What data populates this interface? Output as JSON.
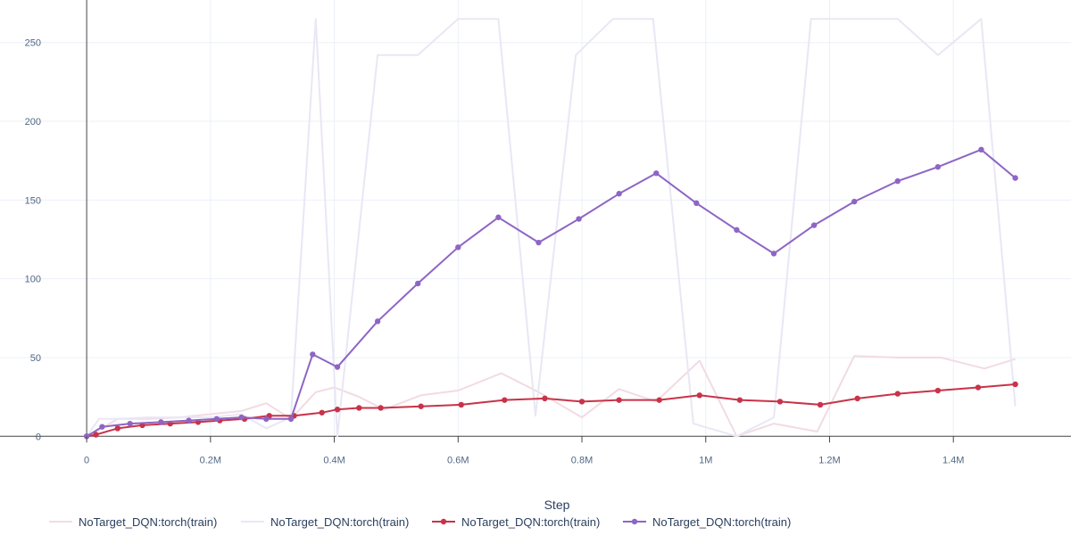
{
  "chart_data": {
    "type": "line",
    "xlabel": "Step",
    "ylabel": "",
    "xlim": [
      -140000,
      1590000
    ],
    "ylim": [
      -14,
      277
    ],
    "x_ticks": [
      {
        "value": 0,
        "label": "0"
      },
      {
        "value": 200000,
        "label": "0.2M"
      },
      {
        "value": 400000,
        "label": "0.4M"
      },
      {
        "value": 600000,
        "label": "0.6M"
      },
      {
        "value": 800000,
        "label": "0.8M"
      },
      {
        "value": 1000000,
        "label": "1M"
      },
      {
        "value": 1200000,
        "label": "1.2M"
      },
      {
        "value": 1400000,
        "label": "1.4M"
      }
    ],
    "y_ticks": [
      {
        "value": 0,
        "label": "0"
      },
      {
        "value": 50,
        "label": "50"
      },
      {
        "value": 100,
        "label": "100"
      },
      {
        "value": 150,
        "label": "150"
      },
      {
        "value": 200,
        "label": "200"
      },
      {
        "value": 250,
        "label": "250"
      }
    ],
    "grid": true,
    "legend_position": "bottom",
    "series": [
      {
        "name": "NoTarget_DQN:torch(train)",
        "color": "#f2dbe3",
        "markers": false,
        "x": [
          0,
          20000,
          50000,
          100000,
          150000,
          200000,
          250000,
          290000,
          330000,
          370000,
          400000,
          440000,
          480000,
          540000,
          600000,
          670000,
          730000,
          800000,
          860000,
          920000,
          990000,
          1050000,
          1110000,
          1180000,
          1240000,
          1310000,
          1380000,
          1450000,
          1500000
        ],
        "y": [
          0,
          4,
          11,
          11,
          12,
          14,
          16,
          21,
          11,
          28,
          31,
          25,
          17,
          26,
          29,
          40,
          28,
          12,
          30,
          22,
          48,
          0,
          8,
          3,
          51,
          50,
          50,
          43,
          49
        ]
      },
      {
        "name": "NoTarget_DQN:torch(train)",
        "color": "#e9e7f5",
        "markers": false,
        "x": [
          0,
          20000,
          50000,
          100000,
          150000,
          200000,
          250000,
          290000,
          330000,
          370000,
          405000,
          470000,
          535000,
          600000,
          665000,
          725000,
          790000,
          850000,
          915000,
          980000,
          1050000,
          1110000,
          1170000,
          1240000,
          1310000,
          1375000,
          1445000,
          1500000
        ],
        "y": [
          0,
          11,
          11,
          12,
          12,
          12,
          14,
          5,
          12,
          265,
          0,
          242,
          242,
          265,
          265,
          13,
          242,
          265,
          265,
          8,
          0,
          12,
          265,
          265,
          265,
          242,
          265,
          19
        ]
      },
      {
        "name": "NoTarget_DQN:torch(train)",
        "color": "#c83349",
        "markers": true,
        "x": [
          0,
          15000,
          50000,
          90000,
          135000,
          180000,
          215000,
          255000,
          295000,
          335000,
          380000,
          405000,
          440000,
          475000,
          540000,
          605000,
          675000,
          740000,
          800000,
          860000,
          925000,
          990000,
          1055000,
          1120000,
          1185000,
          1245000,
          1310000,
          1375000,
          1440000,
          1500000
        ],
        "y": [
          0,
          1,
          5,
          7,
          8,
          9,
          10,
          11,
          13,
          13,
          15,
          17,
          18,
          18,
          19,
          20,
          23,
          24,
          22,
          23,
          23,
          26,
          23,
          22,
          20,
          24,
          27,
          29,
          31,
          33
        ]
      },
      {
        "name": "NoTarget_DQN:torch(train)",
        "color": "#8e65c5",
        "markers": true,
        "x": [
          0,
          25000,
          70000,
          120000,
          165000,
          210000,
          250000,
          290000,
          330000,
          365000,
          405000,
          470000,
          535000,
          600000,
          665000,
          730000,
          795000,
          860000,
          920000,
          985000,
          1050000,
          1110000,
          1175000,
          1240000,
          1310000,
          1375000,
          1445000,
          1500000
        ],
        "y": [
          0,
          6,
          8,
          9,
          10,
          11,
          12,
          11,
          11,
          52,
          44,
          73,
          97,
          120,
          139,
          123,
          138,
          154,
          167,
          148,
          131,
          116,
          134,
          149,
          162,
          171,
          182,
          164
        ]
      }
    ]
  }
}
